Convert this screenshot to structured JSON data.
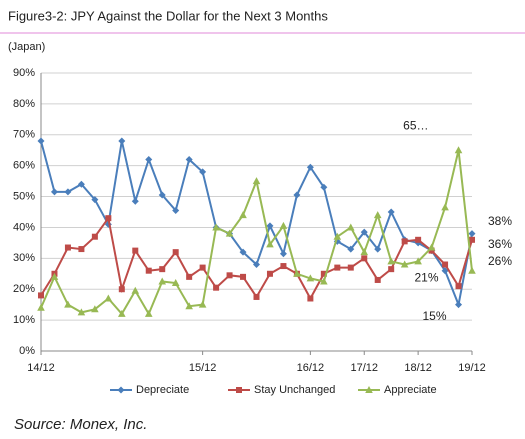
{
  "chart_data": {
    "type": "line",
    "title": "Figure3-2: JPY Against the Dollar for the Next 3 Months",
    "subtitle": "(Japan)",
    "source": "Source: Monex, Inc.",
    "categories": [
      "14/12",
      null,
      null,
      null,
      null,
      null,
      null,
      null,
      null,
      null,
      null,
      null,
      "15/12",
      null,
      null,
      null,
      null,
      null,
      null,
      null,
      "16/12",
      null,
      null,
      null,
      "17/12",
      null,
      null,
      null,
      "18/12",
      null,
      null,
      null,
      "19/12"
    ],
    "series": [
      {
        "name": "Depreciate",
        "color": "#4a7ebb",
        "marker": "diamond",
        "values": [
          68,
          51.5,
          51.5,
          54,
          49,
          41,
          68,
          48.5,
          62,
          50.5,
          45.5,
          62,
          58,
          40,
          38,
          32,
          28,
          40.5,
          31.5,
          50.5,
          59.5,
          53,
          35.5,
          33,
          38.5,
          33,
          45,
          36,
          35,
          32.5,
          26,
          15,
          38
        ],
        "value_labels": [
          null,
          null,
          null,
          null,
          null,
          null,
          null,
          null,
          null,
          null,
          null,
          null,
          null,
          null,
          null,
          null,
          null,
          null,
          null,
          null,
          null,
          null,
          null,
          null,
          null,
          null,
          null,
          null,
          null,
          null,
          null,
          "15%",
          "38%"
        ]
      },
      {
        "name": "Stay Unchanged",
        "color": "#be4b48",
        "marker": "square",
        "values": [
          18,
          25,
          33.5,
          33,
          37,
          43,
          20,
          32.5,
          26,
          26.5,
          32,
          24,
          27,
          20.5,
          24.5,
          24,
          17.5,
          25,
          27.5,
          25,
          17,
          25,
          27,
          27,
          30,
          23,
          26.5,
          35.5,
          36,
          32.5,
          28,
          21,
          36
        ],
        "value_labels": [
          null,
          null,
          null,
          null,
          null,
          null,
          null,
          null,
          null,
          null,
          null,
          null,
          null,
          null,
          null,
          null,
          null,
          null,
          null,
          null,
          null,
          null,
          null,
          null,
          null,
          null,
          null,
          null,
          null,
          null,
          null,
          "21%",
          "36%"
        ]
      },
      {
        "name": "Appreciate",
        "color": "#98b954",
        "marker": "triangle",
        "values": [
          14,
          24,
          15,
          12.5,
          13.5,
          17,
          12,
          19.5,
          12,
          22.5,
          22,
          14.5,
          15,
          40,
          38,
          44,
          55,
          34.5,
          40.5,
          25,
          23.5,
          22.5,
          37,
          40,
          32,
          44,
          29,
          28,
          29,
          33.5,
          46.5,
          65,
          26
        ],
        "value_labels": [
          null,
          null,
          null,
          null,
          null,
          null,
          null,
          null,
          null,
          null,
          null,
          null,
          null,
          null,
          null,
          null,
          null,
          null,
          null,
          null,
          null,
          null,
          null,
          null,
          null,
          null,
          null,
          null,
          null,
          null,
          null,
          "65…",
          "26%"
        ]
      }
    ],
    "ylim": [
      0,
      90
    ],
    "yticks": [
      {
        "value": 0,
        "label": "0%"
      },
      {
        "value": 10,
        "label": "10%"
      },
      {
        "value": 20,
        "label": "20%"
      },
      {
        "value": 30,
        "label": "30%"
      },
      {
        "value": 40,
        "label": "40%"
      },
      {
        "value": 50,
        "label": "50%"
      },
      {
        "value": 60,
        "label": "60%"
      },
      {
        "value": 70,
        "label": "70%"
      },
      {
        "value": 80,
        "label": "80%"
      },
      {
        "value": 90,
        "label": "90%"
      }
    ],
    "grid": true,
    "legend": "bottom"
  }
}
